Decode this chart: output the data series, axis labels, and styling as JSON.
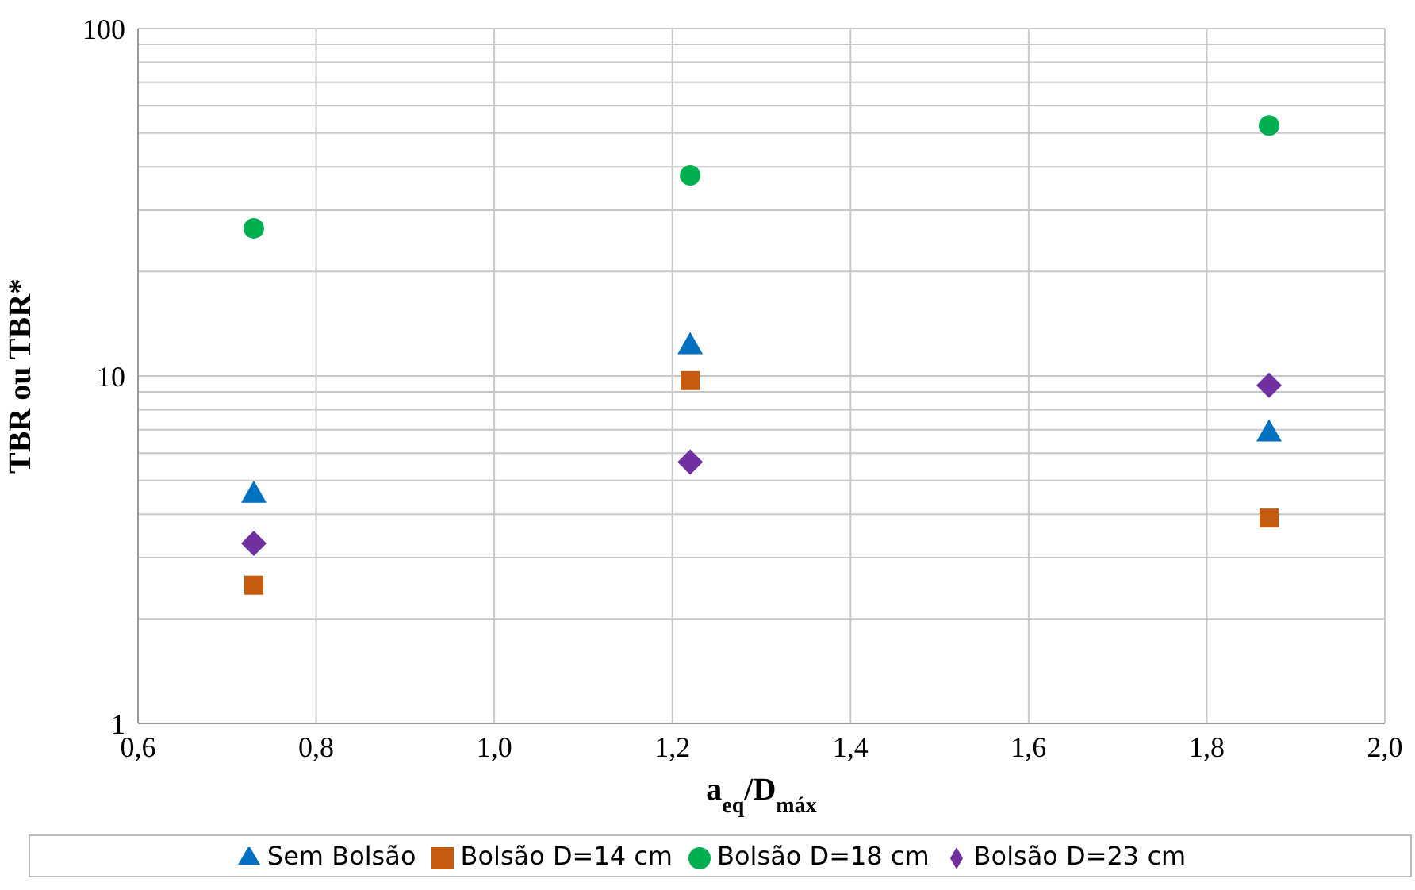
{
  "chart_data": {
    "type": "scatter",
    "xlabel": "a$_{eq}$/D$_{máx}$",
    "ylabel": "TBR ou TBR*",
    "log": "y",
    "xlim": [
      0.6,
      2.0
    ],
    "xticks": [
      {
        "value": 0.6,
        "label": "0,6"
      },
      {
        "value": 0.8,
        "label": "0,8"
      },
      {
        "value": 1.0,
        "label": "1,0"
      },
      {
        "value": 1.2,
        "label": "1,2"
      },
      {
        "value": 1.4,
        "label": "1,4"
      },
      {
        "value": 1.6,
        "label": "1,6"
      },
      {
        "value": 1.8,
        "label": "1,8"
      },
      {
        "value": 2.0,
        "label": "2,0"
      }
    ],
    "ylim": [
      1,
      100
    ],
    "yticks": [
      1,
      {
        "value": 2,
        "label": null
      },
      {
        "value": 3,
        "label": null
      },
      {
        "value": 4,
        "label": null
      },
      {
        "value": 5,
        "label": null
      },
      {
        "value": 6,
        "label": null
      },
      {
        "value": 7,
        "label": null
      },
      {
        "value": 8,
        "label": null
      },
      {
        "value": 9,
        "label": null
      },
      10,
      {
        "value": 20,
        "label": null
      },
      {
        "value": 30,
        "label": null
      },
      {
        "value": 40,
        "label": null
      },
      {
        "value": 50,
        "label": null
      },
      {
        "value": 60,
        "label": null
      },
      {
        "value": 70,
        "label": null
      },
      {
        "value": 80,
        "label": null
      },
      {
        "value": 90,
        "label": null
      },
      100
    ],
    "grid": true,
    "legend": "bottom",
    "series": [
      {
        "name": "Sem Bolsão",
        "color": "#0070c0",
        "marker": "triangle",
        "x": [
          0.73,
          1.22,
          1.87
        ],
        "values": [
          4.6,
          12.3,
          6.9
        ]
      },
      {
        "name": "Bolsão D=14 cm",
        "color": "#c55a11",
        "marker": "square",
        "x": [
          0.73,
          1.22,
          1.87
        ],
        "values": [
          2.5,
          9.7,
          3.9
        ]
      },
      {
        "name": "Bolsão D=18 cm",
        "color": "#00b050",
        "marker": "circle",
        "x": [
          0.73,
          1.22,
          1.87
        ],
        "values": [
          26.6,
          37.8,
          52.6
        ]
      },
      {
        "name": "Bolsão D=23 cm",
        "color": "#7030a0",
        "marker": "diamond",
        "x": [
          0.73,
          1.22,
          1.87
        ],
        "values": [
          3.3,
          5.65,
          9.4
        ]
      }
    ]
  }
}
